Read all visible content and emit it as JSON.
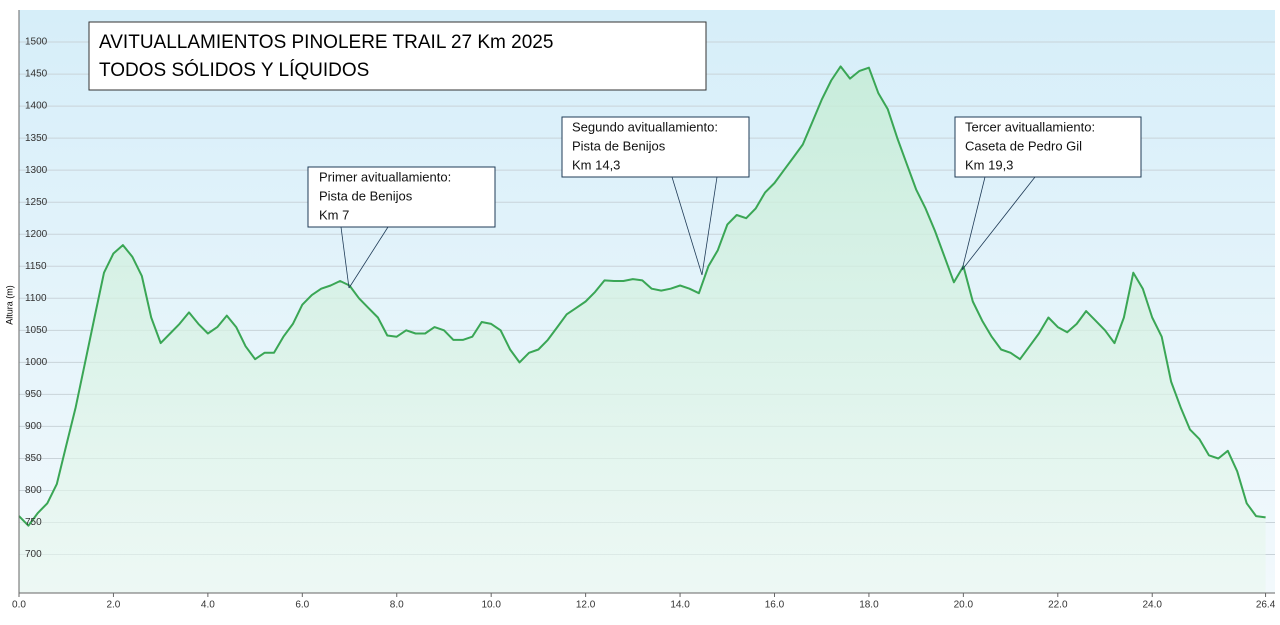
{
  "chart_data": {
    "type": "line",
    "title": "AVITUALLAMIENTOS PINOLERE TRAIL 27 Km 2025",
    "subtitle": "TODOS SÓLIDOS Y LÍQUIDOS",
    "y_label": "Altura (m)",
    "annotations": [
      [
        "Primer avituallamiento:",
        "Pista de Benijos",
        "Km 7"
      ],
      [
        "Segundo avituallamiento:",
        "Pista de Benijos",
        "Km 14,3"
      ],
      [
        "Tercer avituallamiento:",
        "Caseta de Pedro Gil",
        "Km 19,3"
      ]
    ],
    "color": "#3aa655",
    "grid": true,
    "xlim": [
      0,
      26.6
    ],
    "ylim": [
      640,
      1550
    ],
    "xticks": [
      {
        "value": 0,
        "label": "0.0"
      },
      {
        "value": 2,
        "label": "2.0"
      },
      {
        "value": 4,
        "label": "4.0"
      },
      {
        "value": 6,
        "label": "6.0"
      },
      {
        "value": 8,
        "label": "8.0"
      },
      {
        "value": 10,
        "label": "10.0"
      },
      {
        "value": 12,
        "label": "12.0"
      },
      {
        "value": 14,
        "label": "14.0"
      },
      {
        "value": 16,
        "label": "16.0"
      },
      {
        "value": 18,
        "label": "18.0"
      },
      {
        "value": 20,
        "label": "20.0"
      },
      {
        "value": 22,
        "label": "22.0"
      },
      {
        "value": 24,
        "label": "24.0"
      },
      {
        "value": 26.4,
        "label": "26.4"
      }
    ],
    "yticks": [
      700,
      750,
      800,
      850,
      900,
      950,
      1000,
      1050,
      1100,
      1150,
      1200,
      1250,
      1300,
      1350,
      1400,
      1450,
      1500
    ],
    "x": [
      0,
      0.2,
      0.4,
      0.6,
      0.8,
      1.0,
      1.2,
      1.4,
      1.6,
      1.8,
      2.0,
      2.2,
      2.4,
      2.6,
      2.8,
      3.0,
      3.2,
      3.4,
      3.6,
      3.8,
      4.0,
      4.2,
      4.4,
      4.6,
      4.8,
      5.0,
      5.2,
      5.4,
      5.6,
      5.8,
      6.0,
      6.2,
      6.4,
      6.6,
      6.8,
      7.0,
      7.2,
      7.4,
      7.6,
      7.8,
      8.0,
      8.2,
      8.4,
      8.6,
      8.8,
      9.0,
      9.2,
      9.4,
      9.6,
      9.8,
      10.0,
      10.2,
      10.4,
      10.6,
      10.8,
      11.0,
      11.2,
      11.4,
      11.6,
      11.8,
      12.0,
      12.2,
      12.4,
      12.6,
      12.8,
      13.0,
      13.2,
      13.4,
      13.6,
      13.8,
      14.0,
      14.2,
      14.4,
      14.6,
      14.8,
      15.0,
      15.2,
      15.4,
      15.6,
      15.8,
      16.0,
      16.2,
      16.4,
      16.6,
      16.8,
      17.0,
      17.2,
      17.4,
      17.6,
      17.8,
      18.0,
      18.2,
      18.4,
      18.6,
      18.8,
      19.0,
      19.2,
      19.4,
      19.6,
      19.8,
      20.0,
      20.2,
      20.4,
      20.6,
      20.8,
      21.0,
      21.2,
      21.4,
      21.6,
      21.8,
      22.0,
      22.2,
      22.4,
      22.6,
      22.8,
      23.0,
      23.2,
      23.4,
      23.6,
      23.8,
      24.0,
      24.2,
      24.4,
      24.6,
      24.8,
      25.0,
      25.2,
      25.4,
      25.6,
      25.8,
      26.0,
      26.2,
      26.4
    ],
    "values": [
      760,
      745,
      765,
      780,
      810,
      870,
      930,
      1000,
      1070,
      1140,
      1170,
      1183,
      1165,
      1135,
      1070,
      1030,
      1045,
      1060,
      1078,
      1060,
      1045,
      1055,
      1073,
      1055,
      1025,
      1005,
      1015,
      1015,
      1040,
      1060,
      1090,
      1105,
      1115,
      1120,
      1127,
      1120,
      1100,
      1085,
      1070,
      1042,
      1040,
      1050,
      1045,
      1045,
      1055,
      1050,
      1035,
      1035,
      1040,
      1063,
      1060,
      1050,
      1020,
      1000,
      1015,
      1020,
      1035,
      1055,
      1075,
      1085,
      1095,
      1110,
      1128,
      1127,
      1127,
      1130,
      1128,
      1115,
      1112,
      1115,
      1120,
      1115,
      1108,
      1150,
      1175,
      1215,
      1230,
      1225,
      1240,
      1265,
      1280,
      1300,
      1320,
      1340,
      1375,
      1410,
      1440,
      1462,
      1443,
      1455,
      1460,
      1420,
      1395,
      1350,
      1310,
      1270,
      1240,
      1205,
      1165,
      1125,
      1150,
      1095,
      1065,
      1040,
      1020,
      1015,
      1005,
      1025,
      1045,
      1070,
      1055,
      1047,
      1060,
      1080,
      1065,
      1050,
      1030,
      1070,
      1140,
      1115,
      1070,
      1040,
      970,
      930,
      895,
      880,
      855,
      850,
      862,
      830,
      780,
      760,
      758
    ]
  }
}
